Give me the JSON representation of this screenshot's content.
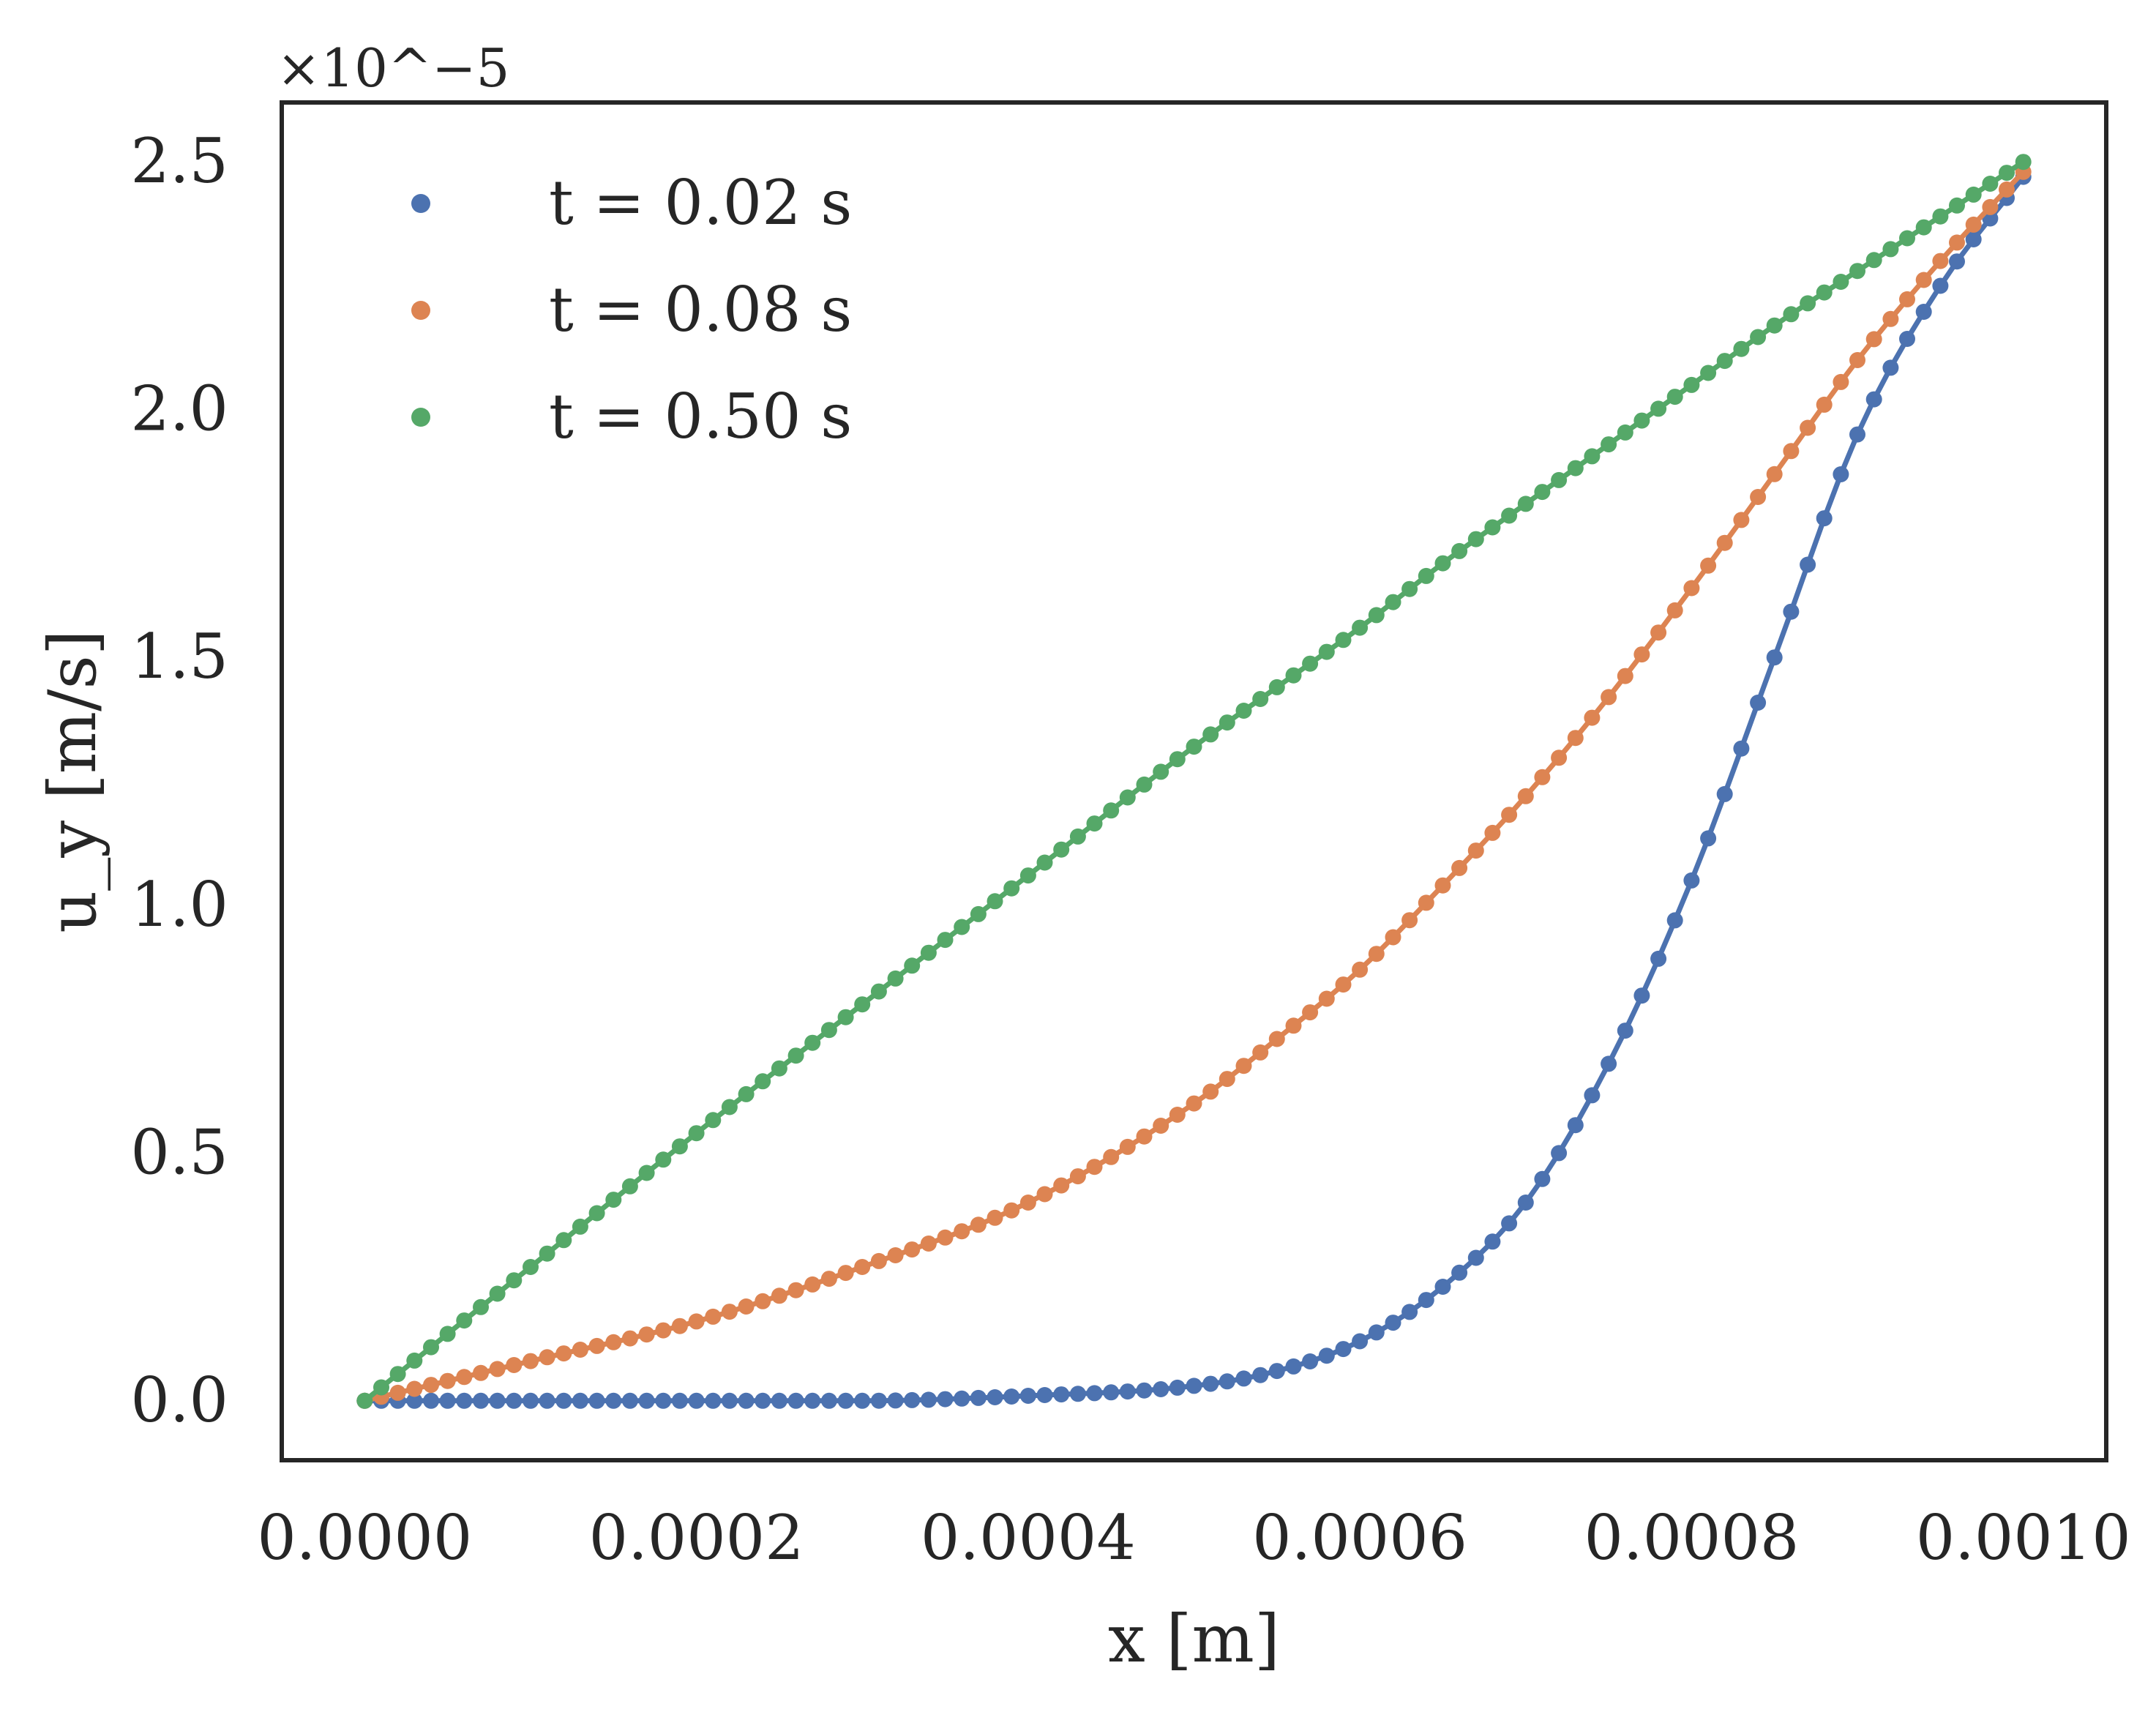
{
  "chart_data": {
    "type": "line",
    "title": "",
    "xlabel": "x [m]",
    "ylabel": "u_y [m/s]",
    "y_offset_label": "×10^−5",
    "xlim": [
      -5e-05,
      0.00105
    ],
    "ylim": [
      -0.12,
      2.62
    ],
    "x_ticks": [
      0.0,
      0.0002,
      0.0004,
      0.0006,
      0.0008,
      0.001
    ],
    "x_tick_labels": [
      "0.0000",
      "0.0002",
      "0.0004",
      "0.0006",
      "0.0008",
      "0.0010"
    ],
    "y_ticks": [
      0.0,
      0.5,
      1.0,
      1.5,
      2.0,
      2.5
    ],
    "y_tick_labels": [
      "0.0",
      "0.5",
      "1.0",
      "1.5",
      "2.0",
      "2.5"
    ],
    "grid": false,
    "legend_position": "top-left",
    "x": [
      0.0,
      0.0001,
      0.0002,
      0.0003,
      0.0004,
      0.0005,
      0.00055,
      0.0006,
      0.00065,
      0.0007,
      0.00075,
      0.0008,
      0.00085,
      0.0009,
      0.00095,
      0.001
    ],
    "series": [
      {
        "name": "t = 0.02 s",
        "color": "#4c72b0",
        "values": [
          0.0,
          0.0,
          0.0,
          0.0,
          0.01,
          0.03,
          0.06,
          0.12,
          0.23,
          0.4,
          0.68,
          1.05,
          1.5,
          1.95,
          2.25,
          2.47
        ]
      },
      {
        "name": "t = 0.08 s",
        "color": "#dd8452",
        "values": [
          0.0,
          0.08,
          0.16,
          0.27,
          0.4,
          0.6,
          0.73,
          0.87,
          1.04,
          1.22,
          1.42,
          1.64,
          1.87,
          2.1,
          2.3,
          2.48
        ]
      },
      {
        "name": "t = 0.50 s",
        "color": "#55a868",
        "values": [
          0.0,
          0.27,
          0.54,
          0.8,
          1.06,
          1.32,
          1.44,
          1.56,
          1.69,
          1.81,
          1.93,
          2.05,
          2.17,
          2.28,
          2.39,
          2.5
        ]
      }
    ]
  }
}
